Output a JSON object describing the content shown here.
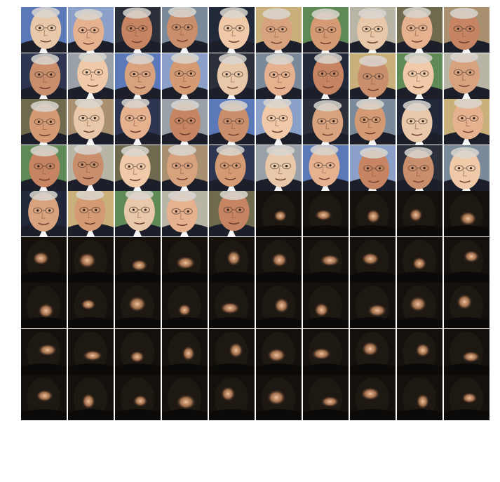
{
  "figure": {
    "rows": 9,
    "cols": 10,
    "real_count": 45,
    "tone_palette": [
      "#e8c8a8",
      "#d8a27e",
      "#c98e6b",
      "#e5b18f",
      "#d39a73",
      "#f0c9a9",
      "#c68462"
    ],
    "real_background_palette": [
      "#5b78b8",
      "#8aa0c8",
      "#2a2f3a",
      "#7a8a9a",
      "#20283a",
      "#c9b07a",
      "#5f8a55",
      "#b8b4a6",
      "#6f6a4e",
      "#a89070",
      "#2d3550",
      "#9aa0a8"
    ],
    "generated_background": "#15100c",
    "generated_glow": "#f2c49e"
  }
}
